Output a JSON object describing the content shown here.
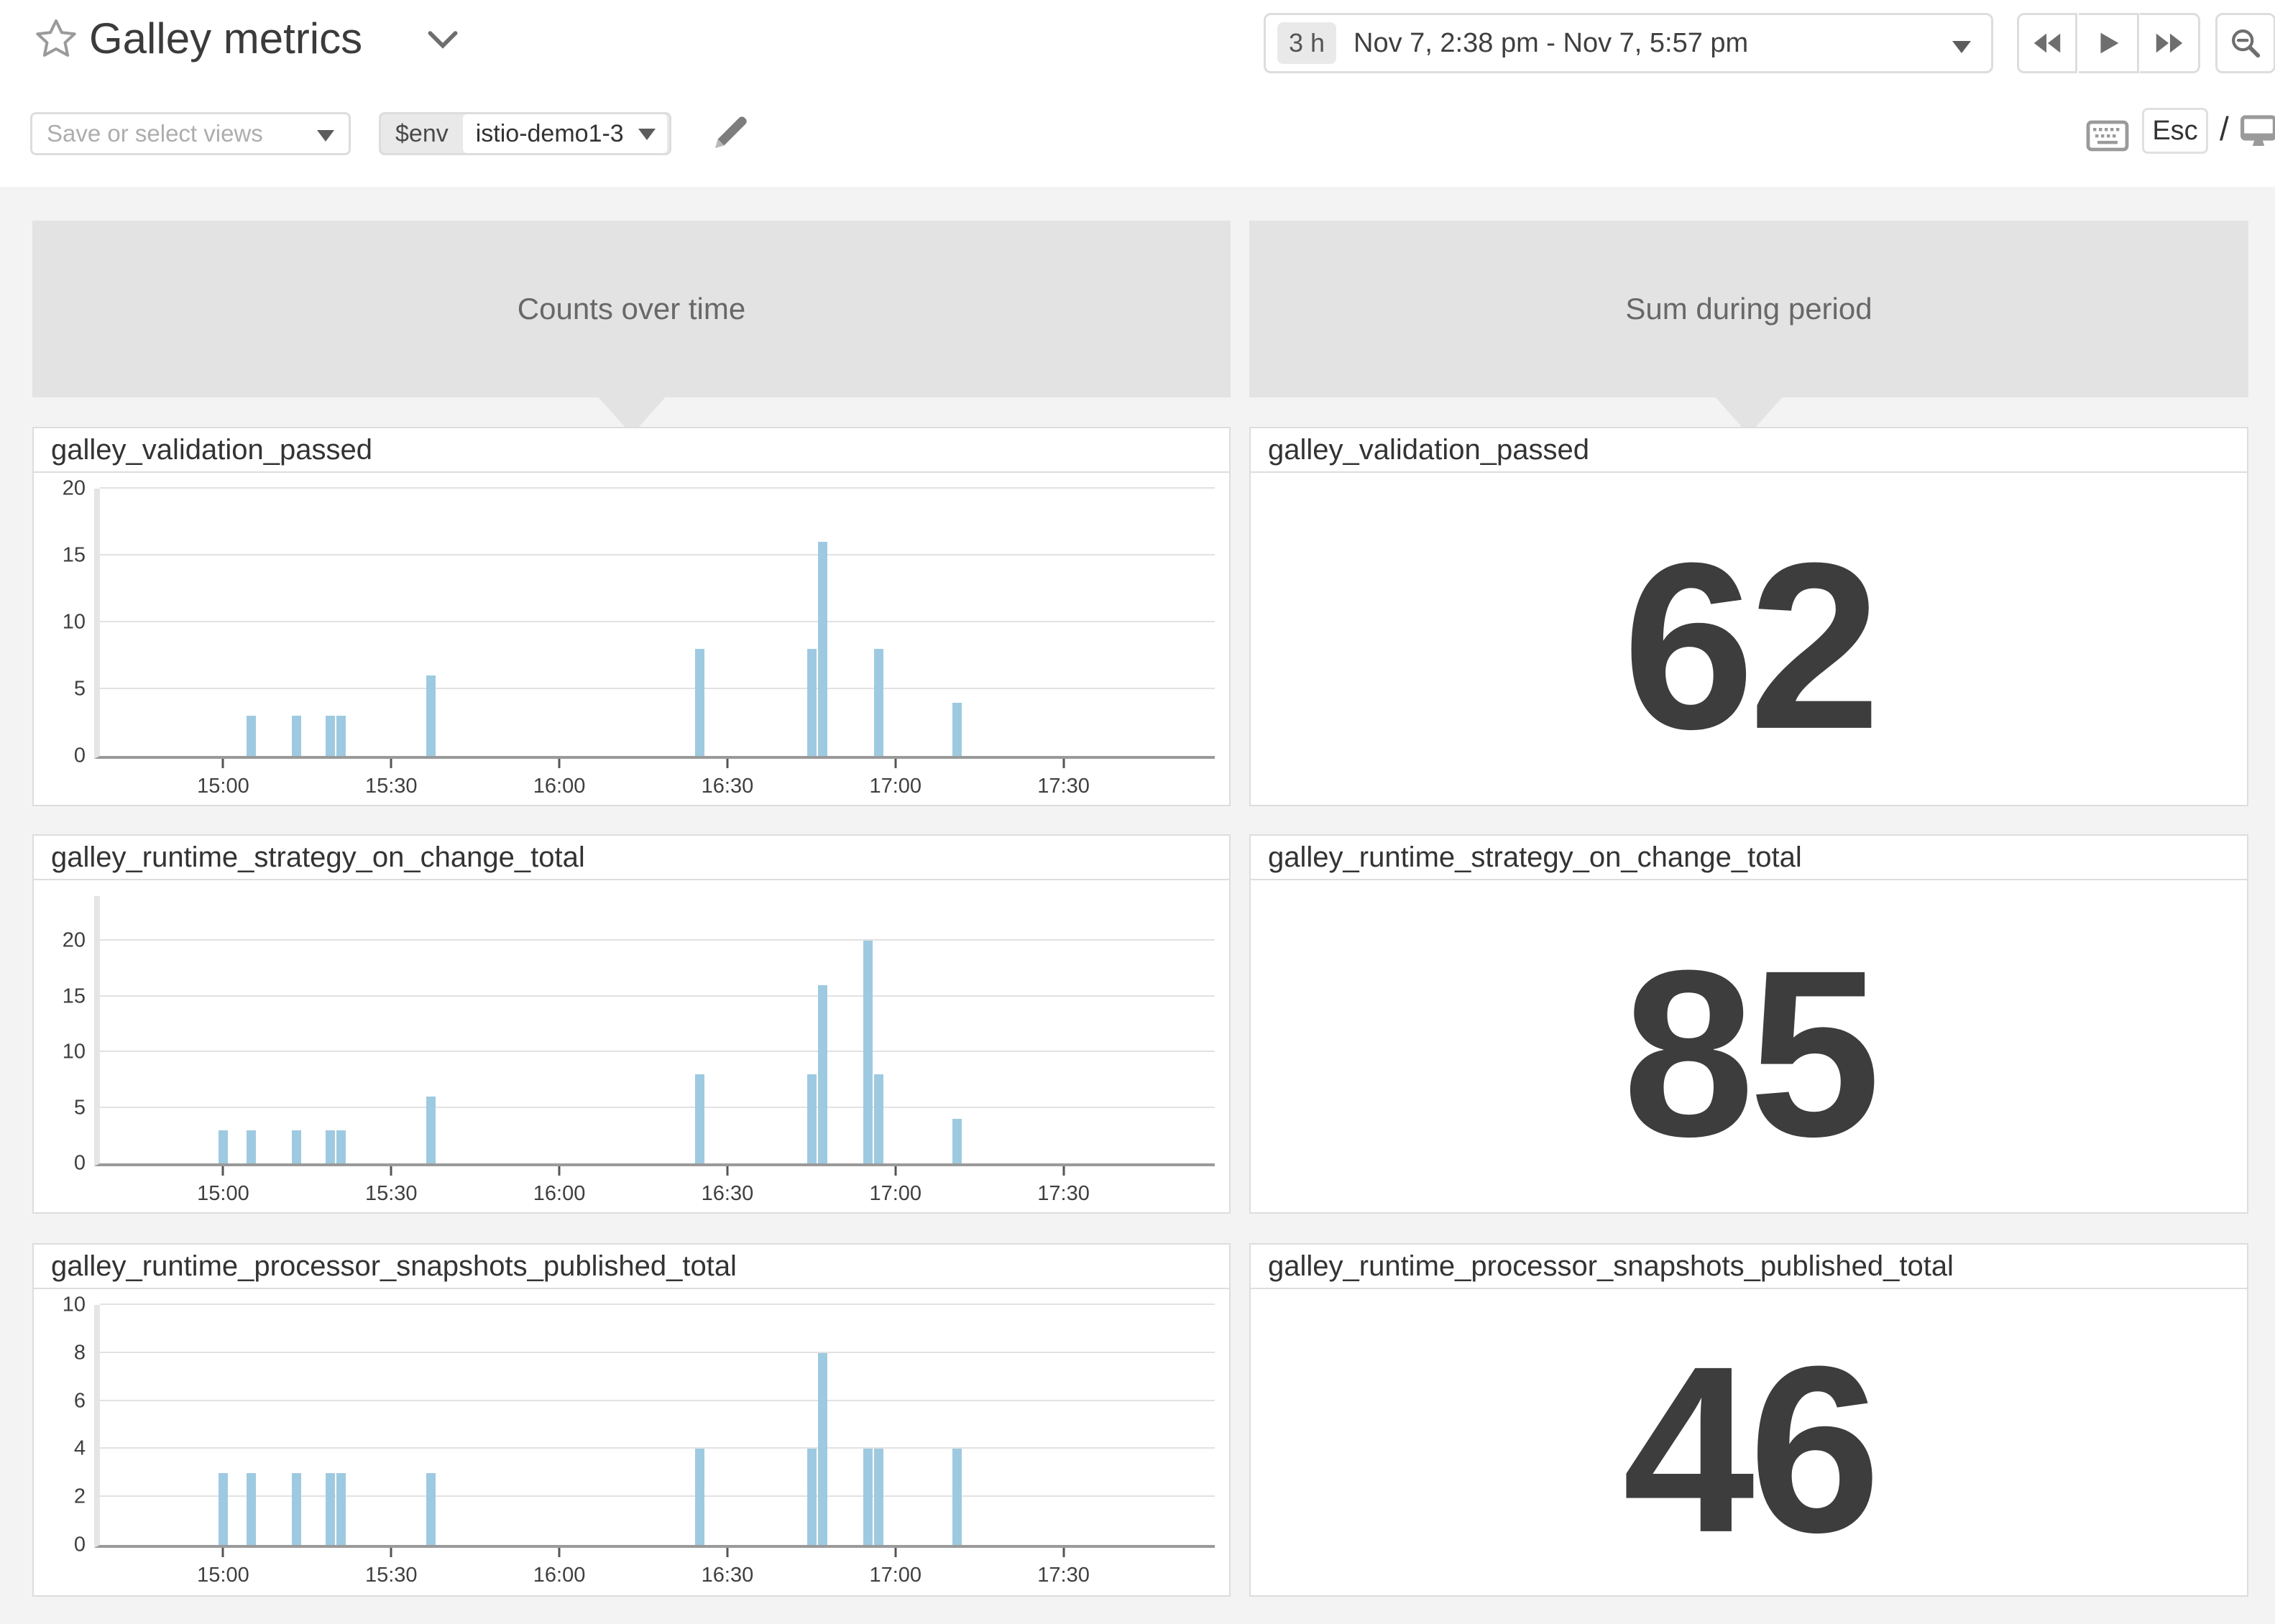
{
  "app": {
    "title": "Galley metrics",
    "time_picker": {
      "duration_badge": "3 h",
      "range_label": "Nov 7, 2:38 pm - Nov 7, 5:57 pm"
    },
    "views_select": {
      "placeholder": "Save or select views"
    },
    "env_select": {
      "variable": "$env",
      "value": "istio-demo1-3"
    },
    "shortcut_hint": {
      "esc": "Esc",
      "separator": "/"
    }
  },
  "column_headers": [
    {
      "label": "Counts over time"
    },
    {
      "label": "Sum during period"
    }
  ],
  "colors": {
    "bar": "#9ecae1",
    "big_number": "#3d3d3d",
    "header_box": "#e3e3e3"
  },
  "chart_data": [
    {
      "type": "bar",
      "title": "galley_validation_passed",
      "x_range_minutes": [
        878,
        1077
      ],
      "x_ticks": [
        "15:00",
        "15:30",
        "16:00",
        "16:30",
        "17:00",
        "17:30"
      ],
      "y_ticks": [
        0,
        5,
        10,
        15,
        20
      ],
      "ylim": [
        0,
        20
      ],
      "points": [
        {
          "t": "15:05",
          "v": 3
        },
        {
          "t": "15:13",
          "v": 3
        },
        {
          "t": "15:19",
          "v": 3
        },
        {
          "t": "15:21",
          "v": 3
        },
        {
          "t": "15:37",
          "v": 6
        },
        {
          "t": "16:25",
          "v": 8
        },
        {
          "t": "16:45",
          "v": 8
        },
        {
          "t": "16:47",
          "v": 16
        },
        {
          "t": "16:57",
          "v": 8
        },
        {
          "t": "17:11",
          "v": 4
        }
      ]
    },
    {
      "type": "bar",
      "title": "galley_runtime_strategy_on_change_total",
      "x_range_minutes": [
        878,
        1077
      ],
      "x_ticks": [
        "15:00",
        "15:30",
        "16:00",
        "16:30",
        "17:00",
        "17:30"
      ],
      "y_ticks": [
        0,
        5,
        10,
        15,
        20
      ],
      "ylim": [
        0,
        24
      ],
      "points": [
        {
          "t": "15:00",
          "v": 3
        },
        {
          "t": "15:05",
          "v": 3
        },
        {
          "t": "15:13",
          "v": 3
        },
        {
          "t": "15:19",
          "v": 3
        },
        {
          "t": "15:21",
          "v": 3
        },
        {
          "t": "15:37",
          "v": 6
        },
        {
          "t": "16:25",
          "v": 8
        },
        {
          "t": "16:45",
          "v": 8
        },
        {
          "t": "16:47",
          "v": 16
        },
        {
          "t": "16:55",
          "v": 20
        },
        {
          "t": "16:57",
          "v": 8
        },
        {
          "t": "17:11",
          "v": 4
        }
      ]
    },
    {
      "type": "bar",
      "title": "galley_runtime_processor_snapshots_published_total",
      "x_range_minutes": [
        878,
        1077
      ],
      "x_ticks": [
        "15:00",
        "15:30",
        "16:00",
        "16:30",
        "17:00",
        "17:30"
      ],
      "y_ticks": [
        0,
        2,
        4,
        6,
        8,
        10
      ],
      "ylim": [
        0,
        10
      ],
      "points": [
        {
          "t": "15:00",
          "v": 3
        },
        {
          "t": "15:05",
          "v": 3
        },
        {
          "t": "15:13",
          "v": 3
        },
        {
          "t": "15:19",
          "v": 3
        },
        {
          "t": "15:21",
          "v": 3
        },
        {
          "t": "15:37",
          "v": 3
        },
        {
          "t": "16:25",
          "v": 4
        },
        {
          "t": "16:45",
          "v": 4
        },
        {
          "t": "16:47",
          "v": 8
        },
        {
          "t": "16:55",
          "v": 4
        },
        {
          "t": "16:57",
          "v": 4
        },
        {
          "t": "17:11",
          "v": 4
        }
      ]
    },
    {
      "type": "single_value",
      "title": "galley_validation_passed",
      "value": 62
    },
    {
      "type": "single_value",
      "title": "galley_runtime_strategy_on_change_total",
      "value": 85
    },
    {
      "type": "single_value",
      "title": "galley_runtime_processor_snapshots_published_total",
      "value": 46
    }
  ]
}
